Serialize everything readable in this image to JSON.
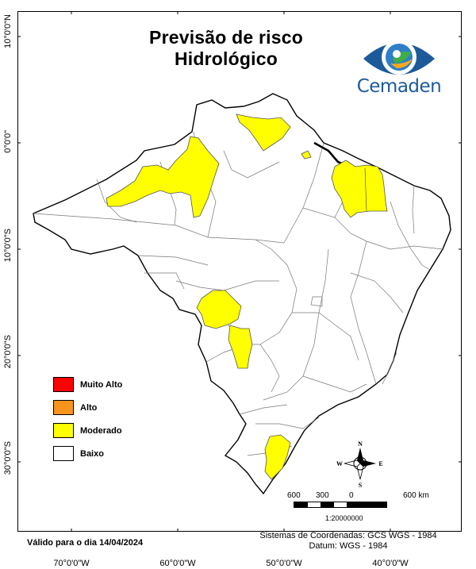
{
  "title_line1": "Previsão de risco",
  "title_line2": "Hidrológico",
  "logo_text": "Cemaden",
  "legend": [
    {
      "label": "Muito Alto",
      "color": "#ff0000"
    },
    {
      "label": "Alto",
      "color": "#f7941d"
    },
    {
      "label": "Moderado",
      "color": "#ffff00"
    },
    {
      "label": "Baixo",
      "color": "#ffffff"
    }
  ],
  "axes": {
    "longitude_ticks": [
      "70°0'0\"W",
      "60°0'0\"W",
      "50°0'0\"W",
      "40°0'0\"W"
    ],
    "latitude_ticks": [
      "10°0'0\"N",
      "0°0'0\"",
      "10°0'0\"S",
      "20°0'0\"S",
      "30°0'0\"S"
    ]
  },
  "north_arrow": {
    "n": "N",
    "s": "S",
    "e": "E",
    "w": "W"
  },
  "scale": {
    "labels": [
      "600",
      "300",
      "0",
      "600 km"
    ],
    "ratio": "1:20000000"
  },
  "valid_text": "Válido para o dia 14/04/2024",
  "crs_line1": "Sistemas de Coordenadas: GCS WGS - 1984",
  "crs_line2": "Datum: WGS - 1984",
  "colors": {
    "border": "#000000",
    "moderado": "#ffff00",
    "brand": "#1c5a9a"
  }
}
